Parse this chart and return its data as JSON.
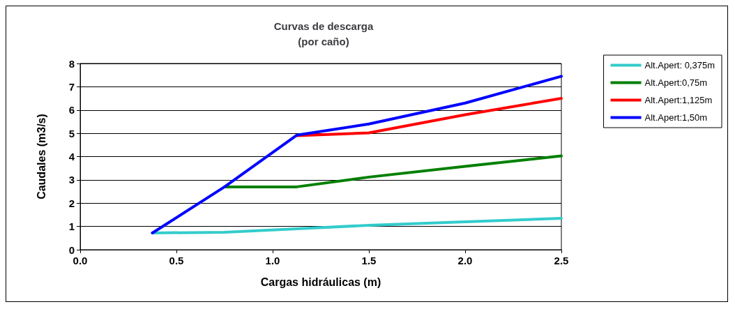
{
  "chart_data": {
    "type": "line",
    "title": "Curvas de descarga\n(por caño)",
    "xlabel": "Cargas hidráulicas (m)",
    "ylabel": "Caudales (m3/s)",
    "xlim": [
      0,
      2.5
    ],
    "xticks": [
      {
        "value": 0,
        "label": "0.0"
      },
      {
        "value": 0.5,
        "label": "0.5"
      },
      {
        "value": 1,
        "label": "1.0"
      },
      {
        "value": 1.5,
        "label": "1.5"
      },
      {
        "value": 2,
        "label": "2.0"
      },
      {
        "value": 2.5,
        "label": "2.5"
      }
    ],
    "ylim": [
      0,
      8
    ],
    "yticks": [
      0,
      1,
      2,
      3,
      4,
      5,
      6,
      7,
      8
    ],
    "grid": "y",
    "legend": "right",
    "marker": "none",
    "line_style": "solid",
    "series": [
      {
        "name": "Alt.Apert: 0,375m",
        "color": "#33cccc",
        "x": [
          0.375,
          0.75,
          1.125,
          1.5,
          2,
          2.5
        ],
        "values": [
          0.72,
          0.75,
          0.9,
          1.05,
          1.2,
          1.35
        ]
      },
      {
        "name": "Alt.Apert:0,75m",
        "color": "#008000",
        "x": [
          0.75,
          1.125,
          1.5,
          2,
          2.5
        ],
        "values": [
          2.7,
          2.7,
          3.12,
          3.58,
          4.03
        ]
      },
      {
        "name": "Alt.Apert:1,125m",
        "color": "#ff0000",
        "x": [
          1.125,
          1.5,
          2,
          2.5
        ],
        "values": [
          4.9,
          5.02,
          5.8,
          6.5
        ]
      },
      {
        "name": "Alt.Apert:1,50m",
        "color": "#0000ff",
        "x": [
          0.375,
          0.75,
          1.125,
          1.5,
          2,
          2.5
        ],
        "values": [
          0.72,
          2.7,
          4.92,
          5.4,
          6.3,
          7.45
        ]
      }
    ]
  }
}
